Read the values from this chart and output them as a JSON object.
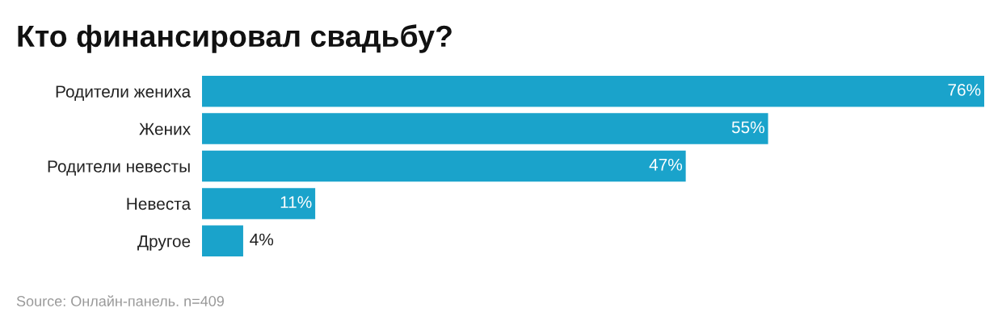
{
  "chart_data": {
    "type": "bar",
    "orientation": "horizontal",
    "title": "Кто финансировал свадьбу?",
    "categories": [
      "Родители жениха",
      "Жених",
      "Родители невесты",
      "Невеста",
      "Другое"
    ],
    "values": [
      76,
      55,
      47,
      11,
      4
    ],
    "value_labels": [
      "76%",
      "55%",
      "47%",
      "11%",
      "4%"
    ],
    "color": "#1aa3cb",
    "grid": false,
    "legend": false,
    "annotations": [
      "Source: Онлайн-панель. n=409"
    ]
  }
}
